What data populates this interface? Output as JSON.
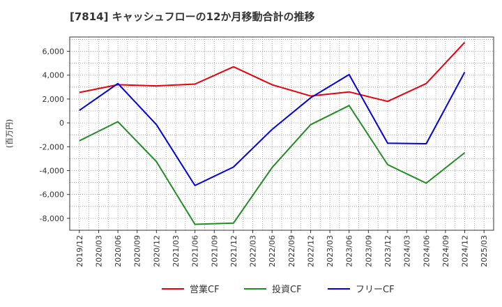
{
  "chart_data": {
    "type": "line",
    "title": "[7814]  キャッシュフローの12か月移動合計の推移",
    "ylabel": "(百万円)",
    "xlabel": "",
    "ylim": [
      -9000,
      7200
    ],
    "yticks": [
      6000,
      4000,
      2000,
      0,
      -2000,
      -4000,
      -6000,
      -8000
    ],
    "ytick_labels": [
      "6,000",
      "4,000",
      "2,000",
      "0",
      "-2,000",
      "-4,000",
      "-6,000",
      "-8,000"
    ],
    "categories": [
      "2019/12",
      "2020/03",
      "2020/06",
      "2020/09",
      "2020/12",
      "2021/03",
      "2021/06",
      "2021/09",
      "2021/12",
      "2022/03",
      "2022/06",
      "2022/09",
      "2022/12",
      "2023/03",
      "2023/06",
      "2023/09",
      "2023/12",
      "2024/03",
      "2024/06",
      "2024/09",
      "2024/12",
      "2025/03"
    ],
    "grid": true,
    "legend_position": "bottom",
    "series": [
      {
        "name": "営業CF",
        "color": "#e8000b",
        "values": [
          2550,
          null,
          3200,
          null,
          3100,
          null,
          3250,
          null,
          4700,
          null,
          3200,
          null,
          2250,
          null,
          2600,
          null,
          1800,
          null,
          3300,
          null,
          6750,
          null
        ]
      },
      {
        "name": "投資CF",
        "color": "#228b22",
        "values": [
          -1500,
          null,
          100,
          null,
          -3250,
          null,
          -8500,
          null,
          -8400,
          null,
          -3750,
          null,
          -150,
          null,
          1450,
          null,
          -3500,
          null,
          -5050,
          null,
          -2500,
          null
        ]
      },
      {
        "name": "フリーCF",
        "color": "#0000e0",
        "values": [
          1050,
          null,
          3300,
          null,
          -150,
          null,
          -5250,
          null,
          -3700,
          null,
          -550,
          null,
          2100,
          null,
          4050,
          null,
          -1700,
          null,
          -1750,
          null,
          4250,
          null
        ]
      }
    ]
  }
}
